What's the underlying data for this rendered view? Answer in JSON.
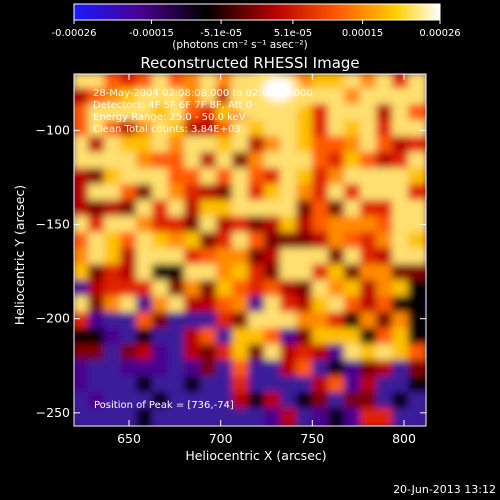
{
  "colorbar": {
    "tick_labels": [
      "-0.00026",
      "-0.00015",
      "-5.1e-05",
      "5.1e-05",
      "0.00015",
      "0.00026"
    ],
    "tick_values": [
      -0.00026,
      -0.00015,
      -5.1e-05,
      5.1e-05,
      0.00015,
      0.00026
    ],
    "range": [
      -0.00026,
      0.00026
    ],
    "unit_label": "(photons cm⁻² s⁻¹ asec⁻²)",
    "colors": [
      "#1a1aff",
      "#4a0090",
      "#000000",
      "#b80000",
      "#ff5a00",
      "#ffd000",
      "#ffffff"
    ]
  },
  "chart_data": {
    "type": "heatmap",
    "title": "Reconstructed RHESSI Image",
    "xlabel": "Heliocentric X (arcsec)",
    "ylabel": "Heliocentric Y (arcsec)",
    "xlim": [
      620,
      812
    ],
    "ylim": [
      -257,
      -70
    ],
    "x_ticks": [
      650,
      700,
      750,
      800
    ],
    "y_ticks": [
      -100,
      -150,
      -200,
      -250
    ],
    "x_tick_labels": [
      "650",
      "700",
      "750",
      "800"
    ],
    "y_tick_labels": [
      "−100",
      "−150",
      "−200",
      "−250"
    ],
    "colormap": "blue-purple-black-red-yellow-white",
    "annotations": [
      "28-May-2004 02:08:08.000 to 02:08:24.000",
      "Detectors: 4F 5F 6F 7F 8F, Att 0",
      "Energy Range: 25.0 - 50.0 keV",
      "Clean     Total counts: 3.84E+03"
    ],
    "peak_label": "Position of Peak = [736,-74]",
    "peak": [
      736,
      -74
    ]
  },
  "footer": {
    "timestamp": "20-Jun-2013 13:12"
  }
}
